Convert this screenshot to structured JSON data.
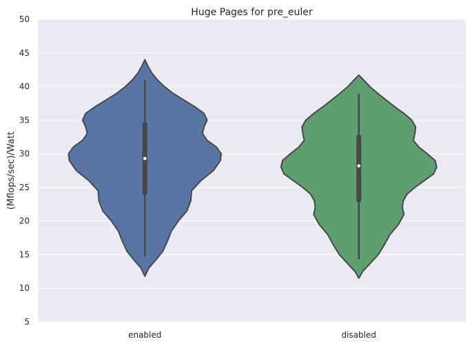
{
  "chart_data": {
    "type": "violin",
    "title": "Huge Pages for pre_euler",
    "xlabel": "",
    "ylabel": "(Mflops/sec)/Watt",
    "ylim": [
      5,
      50
    ],
    "yticks": [
      5,
      10,
      15,
      20,
      25,
      30,
      35,
      40,
      45,
      50
    ],
    "grid": true,
    "categories": [
      "enabled",
      "disabled"
    ],
    "series": [
      {
        "category": "enabled",
        "color": "#5875a4",
        "min": 14.7,
        "q1": 24.2,
        "median": 29.3,
        "q3": 34.4,
        "max": 41.0,
        "profile": [
          [
            11.8,
            0.0
          ],
          [
            13,
            0.05
          ],
          [
            14.2,
            0.14
          ],
          [
            15.5,
            0.23
          ],
          [
            17,
            0.29
          ],
          [
            18.5,
            0.34
          ],
          [
            20,
            0.43
          ],
          [
            21.5,
            0.54
          ],
          [
            23,
            0.59
          ],
          [
            24.5,
            0.6
          ],
          [
            26,
            0.72
          ],
          [
            27.5,
            0.88
          ],
          [
            29,
            0.97
          ],
          [
            30,
            0.98
          ],
          [
            31,
            0.92
          ],
          [
            32,
            0.8
          ],
          [
            33,
            0.74
          ],
          [
            34,
            0.76
          ],
          [
            35,
            0.8
          ],
          [
            36,
            0.76
          ],
          [
            37,
            0.64
          ],
          [
            38,
            0.5
          ],
          [
            39,
            0.36
          ],
          [
            40,
            0.25
          ],
          [
            41,
            0.16
          ],
          [
            42,
            0.09
          ],
          [
            43,
            0.04
          ],
          [
            44,
            0.0
          ]
        ]
      },
      {
        "category": "disabled",
        "color": "#5f9e6e",
        "min": 14.3,
        "q1": 23.1,
        "median": 28.2,
        "q3": 32.5,
        "max": 38.9,
        "profile": [
          [
            11.5,
            0.0
          ],
          [
            12.5,
            0.05
          ],
          [
            13.5,
            0.13
          ],
          [
            15,
            0.25
          ],
          [
            16.5,
            0.33
          ],
          [
            18,
            0.4
          ],
          [
            19.5,
            0.51
          ],
          [
            21,
            0.58
          ],
          [
            22,
            0.56
          ],
          [
            23,
            0.57
          ],
          [
            24,
            0.62
          ],
          [
            25,
            0.72
          ],
          [
            26,
            0.84
          ],
          [
            27,
            0.96
          ],
          [
            28,
            1.0
          ],
          [
            29,
            0.98
          ],
          [
            30,
            0.88
          ],
          [
            31,
            0.77
          ],
          [
            32,
            0.7
          ],
          [
            33,
            0.72
          ],
          [
            34,
            0.73
          ],
          [
            35,
            0.68
          ],
          [
            36,
            0.58
          ],
          [
            37,
            0.46
          ],
          [
            38,
            0.35
          ],
          [
            39,
            0.24
          ],
          [
            40,
            0.14
          ],
          [
            41,
            0.06
          ],
          [
            41.7,
            0.0
          ]
        ]
      }
    ]
  }
}
